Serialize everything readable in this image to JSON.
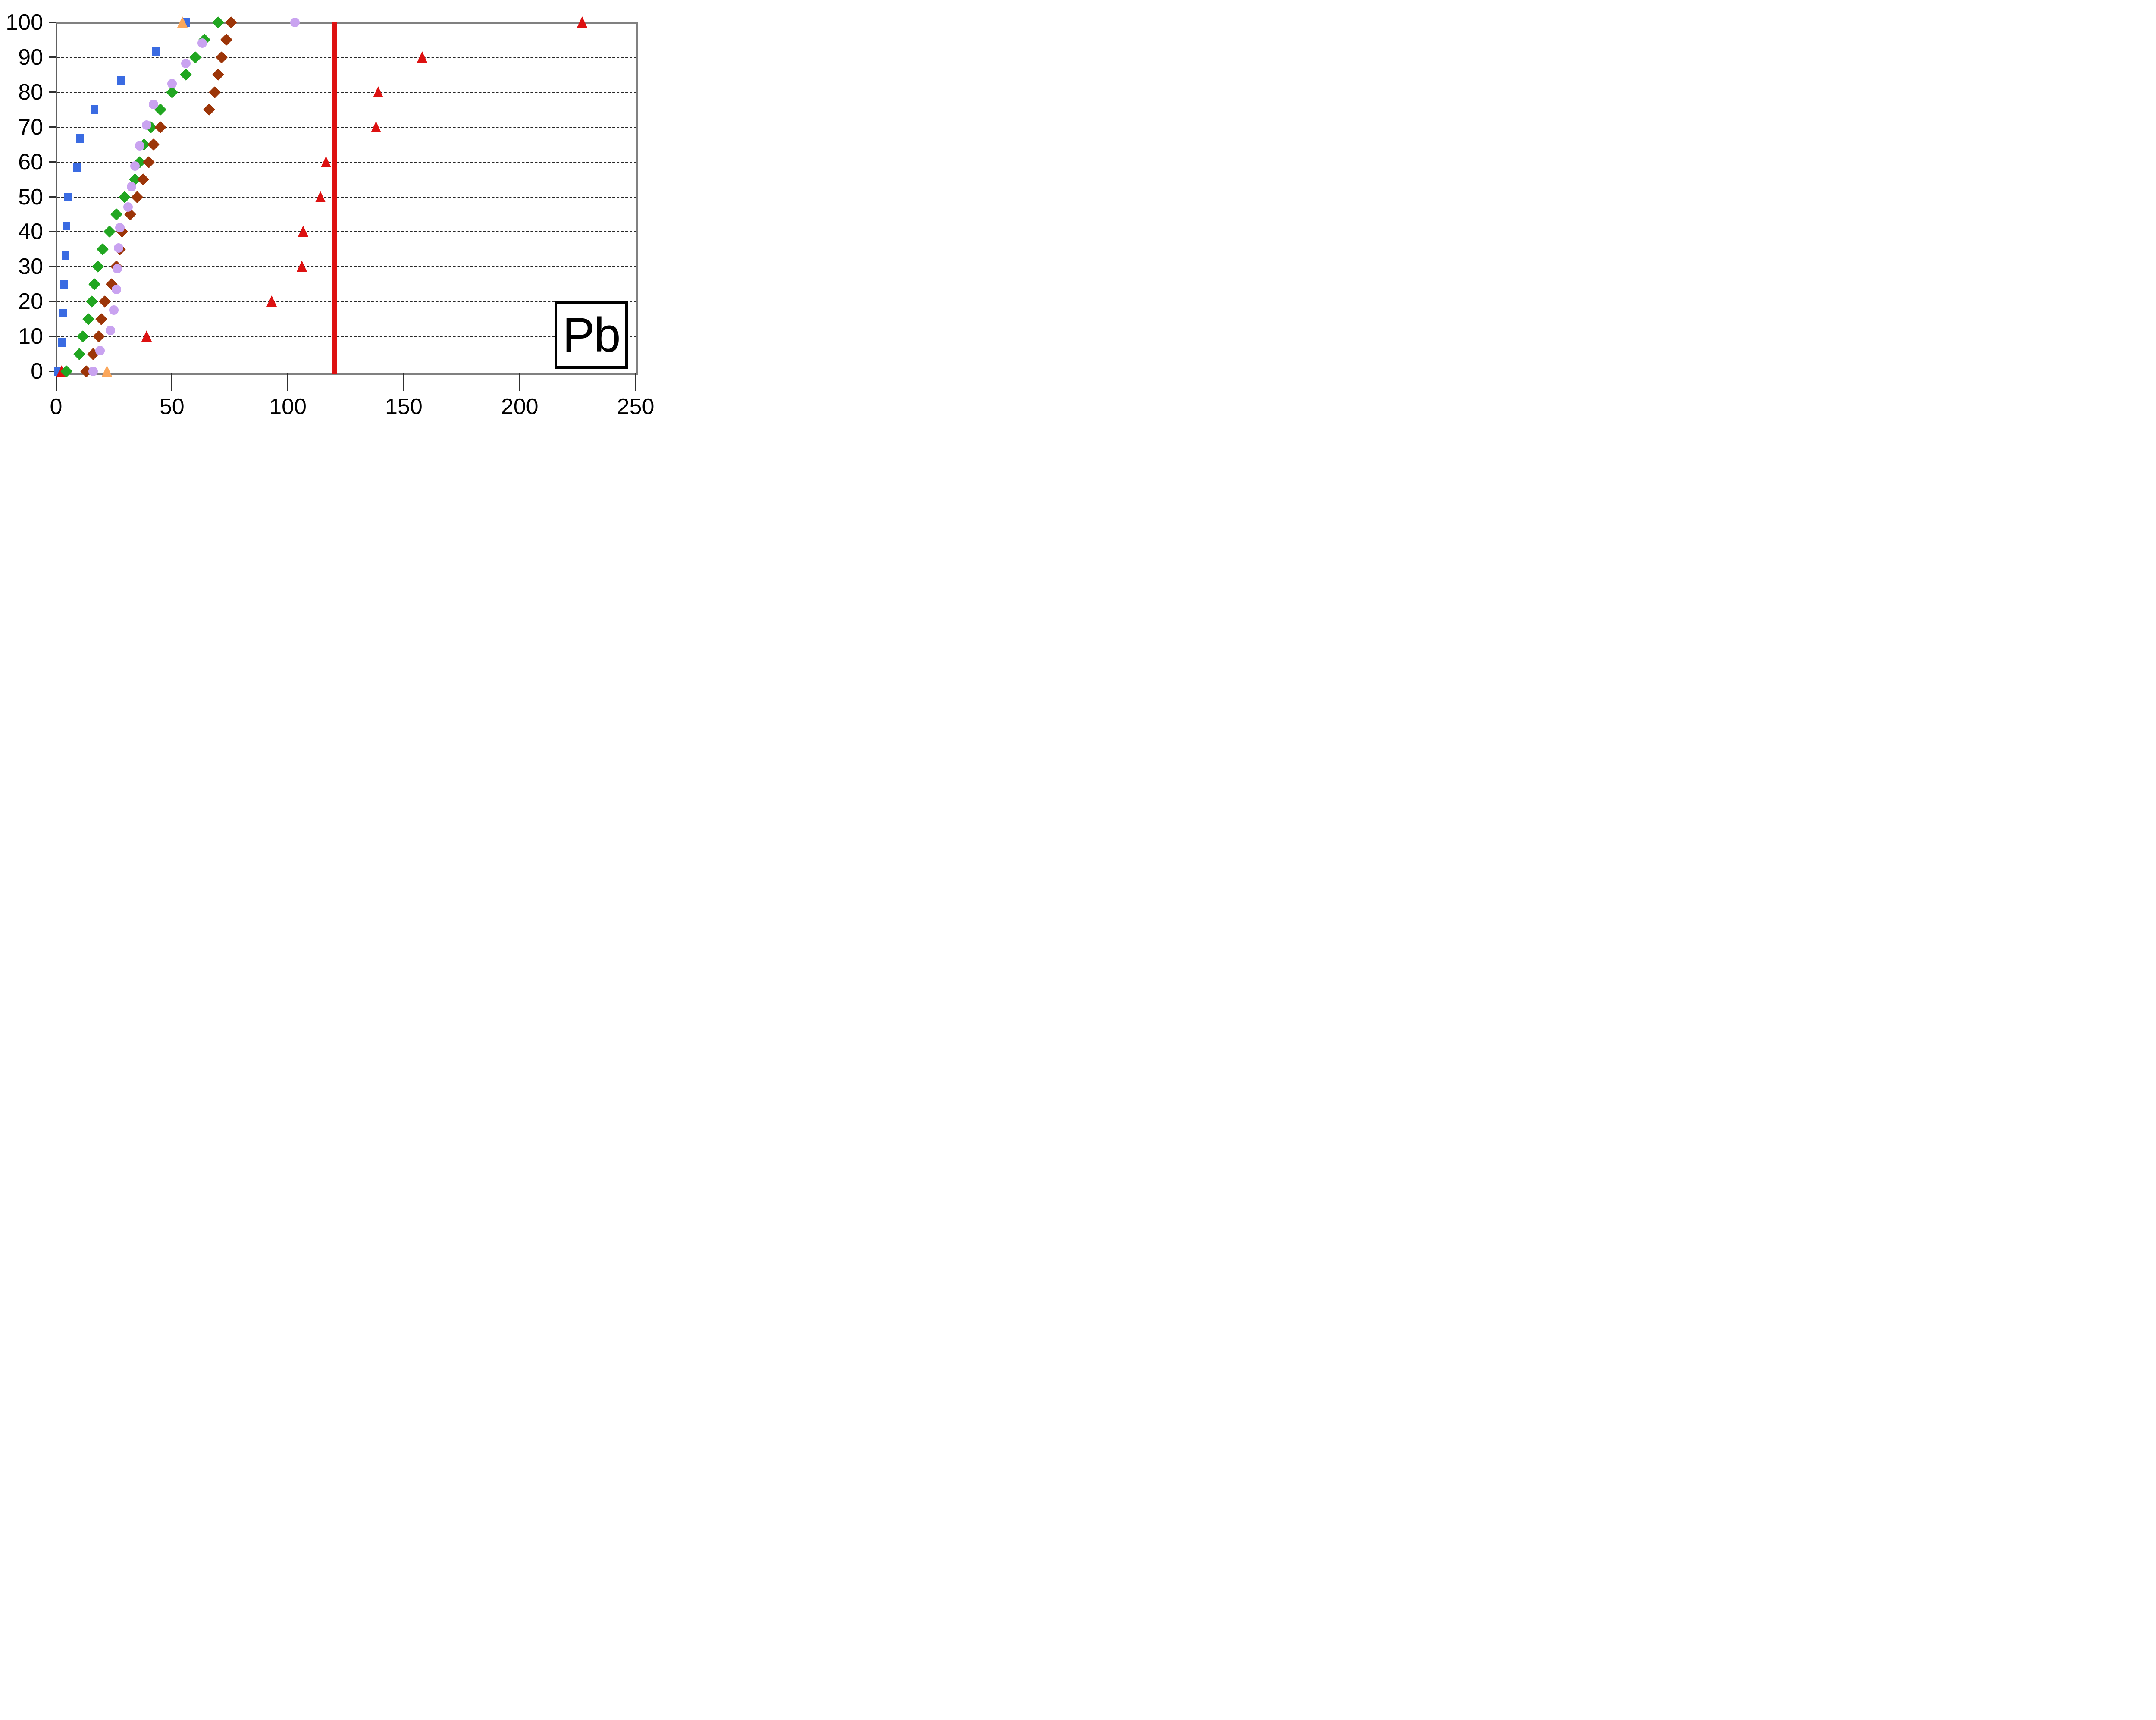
{
  "chart_data": {
    "type": "scatter",
    "title": "Pb",
    "xlabel": "",
    "ylabel": "",
    "xlim": [
      0,
      250
    ],
    "ylim": [
      0,
      100
    ],
    "x_ticks": [
      0,
      50,
      100,
      150,
      200,
      250
    ],
    "y_ticks": [
      0,
      10,
      20,
      30,
      40,
      50,
      60,
      70,
      80,
      90,
      100
    ],
    "grid": "horizontal-dashed",
    "legend": "none",
    "plot_border_color": "#808080",
    "reference_line": {
      "x": 120,
      "color": "#DD1111",
      "orientation": "vertical"
    },
    "series": [
      {
        "name": "blue-squares",
        "marker": "square",
        "color": "#3A6BE2",
        "points": [
          {
            "x": 1,
            "y": 0
          },
          {
            "x": 2.5,
            "y": 8.3
          },
          {
            "x": 3,
            "y": 16.7
          },
          {
            "x": 3.5,
            "y": 25
          },
          {
            "x": 4,
            "y": 33.3
          },
          {
            "x": 4.5,
            "y": 41.7
          },
          {
            "x": 5,
            "y": 50
          },
          {
            "x": 9,
            "y": 58.3
          },
          {
            "x": 10.5,
            "y": 66.7
          },
          {
            "x": 16.5,
            "y": 75
          },
          {
            "x": 28,
            "y": 83.3
          },
          {
            "x": 43,
            "y": 91.7
          },
          {
            "x": 56,
            "y": 100
          }
        ]
      },
      {
        "name": "red-triangles",
        "marker": "triangle",
        "color": "#DD1111",
        "points": [
          {
            "x": 2.5,
            "y": 0
          },
          {
            "x": 39,
            "y": 10
          },
          {
            "x": 93,
            "y": 20
          },
          {
            "x": 106,
            "y": 30
          },
          {
            "x": 106.5,
            "y": 40
          },
          {
            "x": 114,
            "y": 50
          },
          {
            "x": 116.5,
            "y": 60
          },
          {
            "x": 138,
            "y": 70
          },
          {
            "x": 139,
            "y": 80
          },
          {
            "x": 158,
            "y": 90
          },
          {
            "x": 227,
            "y": 100
          }
        ]
      },
      {
        "name": "green-diamonds",
        "marker": "diamond",
        "color": "#21A621",
        "points": [
          {
            "x": 4.5,
            "y": 0
          },
          {
            "x": 10,
            "y": 5
          },
          {
            "x": 11.5,
            "y": 10
          },
          {
            "x": 14,
            "y": 15
          },
          {
            "x": 15.5,
            "y": 20
          },
          {
            "x": 16.5,
            "y": 25
          },
          {
            "x": 18,
            "y": 30
          },
          {
            "x": 20,
            "y": 35
          },
          {
            "x": 23,
            "y": 40
          },
          {
            "x": 26,
            "y": 45
          },
          {
            "x": 29.5,
            "y": 50
          },
          {
            "x": 34,
            "y": 55
          },
          {
            "x": 36,
            "y": 60
          },
          {
            "x": 38,
            "y": 65
          },
          {
            "x": 41,
            "y": 70
          },
          {
            "x": 45,
            "y": 75
          },
          {
            "x": 50,
            "y": 80
          },
          {
            "x": 56,
            "y": 85
          },
          {
            "x": 60,
            "y": 90
          },
          {
            "x": 64,
            "y": 95
          },
          {
            "x": 70,
            "y": 100
          }
        ]
      },
      {
        "name": "brown-diamonds",
        "marker": "diamond",
        "color": "#9C3508",
        "points": [
          {
            "x": 13,
            "y": 0
          },
          {
            "x": 16,
            "y": 5
          },
          {
            "x": 18.5,
            "y": 10
          },
          {
            "x": 19.5,
            "y": 15
          },
          {
            "x": 21,
            "y": 20
          },
          {
            "x": 24,
            "y": 25
          },
          {
            "x": 26,
            "y": 30
          },
          {
            "x": 27.5,
            "y": 35
          },
          {
            "x": 28.5,
            "y": 40
          },
          {
            "x": 32,
            "y": 45
          },
          {
            "x": 35,
            "y": 50
          },
          {
            "x": 37.5,
            "y": 55
          },
          {
            "x": 40,
            "y": 60
          },
          {
            "x": 42,
            "y": 65
          },
          {
            "x": 45,
            "y": 70
          },
          {
            "x": 66,
            "y": 75
          },
          {
            "x": 68.5,
            "y": 80
          },
          {
            "x": 70,
            "y": 85
          },
          {
            "x": 71.5,
            "y": 90
          },
          {
            "x": 73.5,
            "y": 95
          },
          {
            "x": 75.5,
            "y": 100
          }
        ]
      },
      {
        "name": "purple-circles",
        "marker": "circle",
        "color": "#C9A3F0",
        "points": [
          {
            "x": 16,
            "y": 0
          },
          {
            "x": 19,
            "y": 5.9
          },
          {
            "x": 23.5,
            "y": 11.8
          },
          {
            "x": 25,
            "y": 17.6
          },
          {
            "x": 26,
            "y": 23.5
          },
          {
            "x": 26.5,
            "y": 29.4
          },
          {
            "x": 27,
            "y": 35.3
          },
          {
            "x": 27.5,
            "y": 41.2
          },
          {
            "x": 31,
            "y": 47.1
          },
          {
            "x": 32.5,
            "y": 52.9
          },
          {
            "x": 34,
            "y": 58.8
          },
          {
            "x": 36,
            "y": 64.7
          },
          {
            "x": 39,
            "y": 70.6
          },
          {
            "x": 42,
            "y": 76.5
          },
          {
            "x": 50,
            "y": 82.4
          },
          {
            "x": 56,
            "y": 88.2
          },
          {
            "x": 63,
            "y": 94.1
          },
          {
            "x": 103,
            "y": 100
          }
        ]
      },
      {
        "name": "orange-triangles",
        "marker": "triangle",
        "color": "#FBA75B",
        "points": [
          {
            "x": 22,
            "y": 0
          },
          {
            "x": 54.5,
            "y": 100
          }
        ]
      }
    ]
  }
}
